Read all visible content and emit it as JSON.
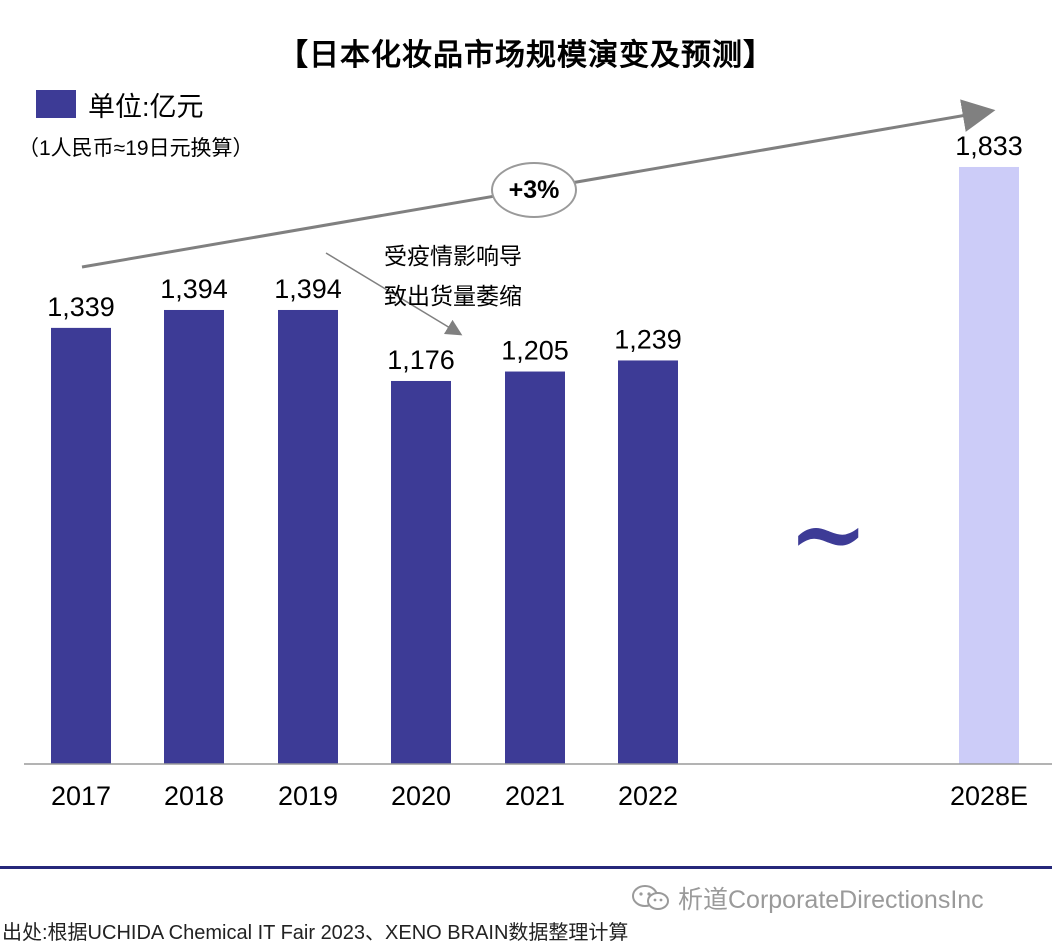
{
  "title": "【日本化妆品市场规模演变及预测】",
  "unit": {
    "label": "单位:亿元",
    "swatch_color": "#3d3b96"
  },
  "exchange_note": "（1人民币≈19日元换算）",
  "growth_badge": "+3%",
  "callout": {
    "line1": "受疫情影响导",
    "line2": "致出货量萎缩"
  },
  "axis_break": "~",
  "chart_data": {
    "type": "bar",
    "title": "【日本化妆品市场规模演变及预测】",
    "ylabel": "单位:亿元",
    "xlabel": "",
    "ylim": [
      0,
      2000
    ],
    "grid": false,
    "categories": [
      "2017",
      "2018",
      "2019",
      "2020",
      "2021",
      "2022",
      "2028E"
    ],
    "values": [
      1339,
      1394,
      1394,
      1176,
      1205,
      1239,
      1833
    ],
    "value_labels": [
      "1,339",
      "1,394",
      "1,394",
      "1,176",
      "1,205",
      "1,239",
      "1,833"
    ],
    "series_colors": [
      "#3d3b96",
      "#3d3b96",
      "#3d3b96",
      "#3d3b96",
      "#3d3b96",
      "#3d3b96",
      "#ccccf8"
    ],
    "annotations": [
      {
        "text": "+3%",
        "type": "trend-arrow"
      },
      {
        "text": "受疫情影响导致出货量萎缩",
        "type": "decline-arrow"
      }
    ]
  },
  "watermark": {
    "text": "析道CorporateDirectionsInc",
    "icon": "wechat-icon"
  },
  "source": "出处:根据UCHIDA Chemical IT Fair 2023、XENO BRAIN数据整理计算"
}
